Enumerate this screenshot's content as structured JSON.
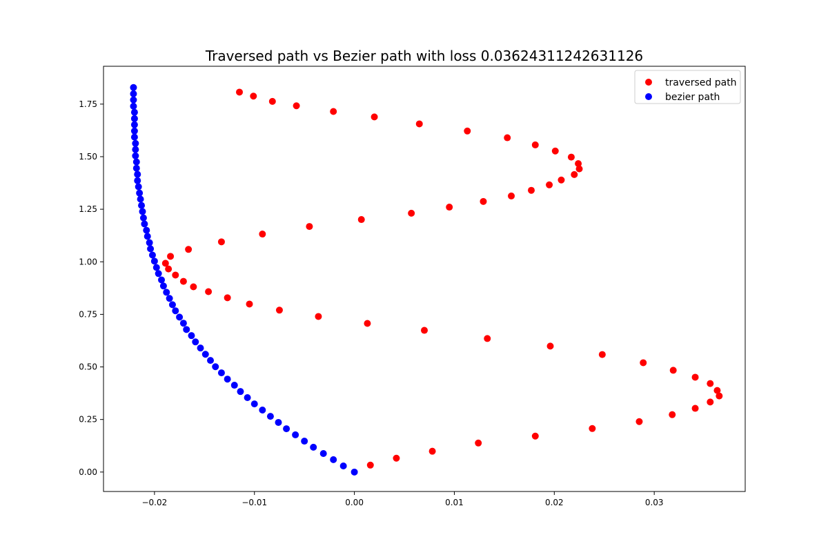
{
  "chart_data": {
    "type": "scatter",
    "title": "Traversed path vs Bezier path with loss 0.03624311242631126",
    "xlabel": "",
    "ylabel": "",
    "xlim": [
      -0.0251,
      0.0391
    ],
    "ylim": [
      -0.0925,
      1.93
    ],
    "grid": false,
    "legend_position": "top-right",
    "x_ticks": [
      {
        "value": -0.02,
        "label": "−0.02"
      },
      {
        "value": -0.01,
        "label": "−0.01"
      },
      {
        "value": 0.0,
        "label": "0.00"
      },
      {
        "value": 0.01,
        "label": "0.01"
      },
      {
        "value": 0.02,
        "label": "0.02"
      },
      {
        "value": 0.03,
        "label": "0.03"
      }
    ],
    "y_ticks": [
      {
        "value": 0.0,
        "label": "0.00"
      },
      {
        "value": 0.25,
        "label": "0.25"
      },
      {
        "value": 0.5,
        "label": "0.50"
      },
      {
        "value": 0.75,
        "label": "0.75"
      },
      {
        "value": 1.0,
        "label": "1.00"
      },
      {
        "value": 1.25,
        "label": "1.25"
      },
      {
        "value": 1.5,
        "label": "1.50"
      },
      {
        "value": 1.75,
        "label": "1.75"
      }
    ],
    "series": [
      {
        "name": "traversed path",
        "color": "#ff0000",
        "points": [
          [
            0.0016,
            0.033
          ],
          [
            0.0042,
            0.066
          ],
          [
            0.0078,
            0.099
          ],
          [
            0.0124,
            0.138
          ],
          [
            0.0181,
            0.171
          ],
          [
            0.0238,
            0.207
          ],
          [
            0.0285,
            0.24
          ],
          [
            0.0318,
            0.273
          ],
          [
            0.0341,
            0.303
          ],
          [
            0.0356,
            0.333
          ],
          [
            0.0365,
            0.362
          ],
          [
            0.0363,
            0.388
          ],
          [
            0.0356,
            0.421
          ],
          [
            0.0341,
            0.451
          ],
          [
            0.0319,
            0.484
          ],
          [
            0.0289,
            0.52
          ],
          [
            0.0248,
            0.559
          ],
          [
            0.0196,
            0.599
          ],
          [
            0.0133,
            0.635
          ],
          [
            0.007,
            0.674
          ],
          [
            0.0013,
            0.707
          ],
          [
            -0.0036,
            0.74
          ],
          [
            -0.0075,
            0.77
          ],
          [
            -0.0105,
            0.799
          ],
          [
            -0.0127,
            0.829
          ],
          [
            -0.0146,
            0.858
          ],
          [
            -0.0161,
            0.881
          ],
          [
            -0.0171,
            0.907
          ],
          [
            -0.0179,
            0.937
          ],
          [
            -0.0186,
            0.966
          ],
          [
            -0.0189,
            0.993
          ],
          [
            -0.0184,
            1.026
          ],
          [
            -0.0166,
            1.059
          ],
          [
            -0.0133,
            1.095
          ],
          [
            -0.0092,
            1.132
          ],
          [
            -0.0045,
            1.168
          ],
          [
            0.0007,
            1.201
          ],
          [
            0.0057,
            1.231
          ],
          [
            0.0095,
            1.26
          ],
          [
            0.0129,
            1.287
          ],
          [
            0.0157,
            1.313
          ],
          [
            0.0177,
            1.34
          ],
          [
            0.0195,
            1.366
          ],
          [
            0.0207,
            1.389
          ],
          [
            0.022,
            1.415
          ],
          [
            0.0225,
            1.442
          ],
          [
            0.0224,
            1.467
          ],
          [
            0.0217,
            1.498
          ],
          [
            0.0201,
            1.527
          ],
          [
            0.0181,
            1.556
          ],
          [
            0.0153,
            1.59
          ],
          [
            0.0113,
            1.622
          ],
          [
            0.0065,
            1.656
          ],
          [
            0.002,
            1.689
          ],
          [
            -0.0021,
            1.715
          ],
          [
            -0.0058,
            1.742
          ],
          [
            -0.0082,
            1.763
          ],
          [
            -0.0101,
            1.788
          ],
          [
            -0.0115,
            1.807
          ]
        ]
      },
      {
        "name": "bezier path",
        "color": "#0000ff",
        "points": [
          [
            0.0,
            0.0
          ],
          [
            -0.0011,
            0.029
          ],
          [
            -0.0021,
            0.059
          ],
          [
            -0.0031,
            0.088
          ],
          [
            -0.0041,
            0.118
          ],
          [
            -0.005,
            0.147
          ],
          [
            -0.0059,
            0.177
          ],
          [
            -0.0068,
            0.206
          ],
          [
            -0.0076,
            0.236
          ],
          [
            -0.0084,
            0.265
          ],
          [
            -0.0092,
            0.295
          ],
          [
            -0.01,
            0.324
          ],
          [
            -0.0107,
            0.354
          ],
          [
            -0.0114,
            0.383
          ],
          [
            -0.012,
            0.413
          ],
          [
            -0.0127,
            0.442
          ],
          [
            -0.0133,
            0.472
          ],
          [
            -0.0139,
            0.501
          ],
          [
            -0.0144,
            0.531
          ],
          [
            -0.0149,
            0.56
          ],
          [
            -0.0154,
            0.59
          ],
          [
            -0.0159,
            0.619
          ],
          [
            -0.0163,
            0.649
          ],
          [
            -0.0168,
            0.678
          ],
          [
            -0.0171,
            0.708
          ],
          [
            -0.0175,
            0.737
          ],
          [
            -0.0179,
            0.767
          ],
          [
            -0.0182,
            0.796
          ],
          [
            -0.0185,
            0.826
          ],
          [
            -0.0188,
            0.855
          ],
          [
            -0.0191,
            0.885
          ],
          [
            -0.0193,
            0.914
          ],
          [
            -0.0196,
            0.944
          ],
          [
            -0.0198,
            0.973
          ],
          [
            -0.02,
            1.003
          ],
          [
            -0.0202,
            1.032
          ],
          [
            -0.0204,
            1.062
          ],
          [
            -0.0205,
            1.091
          ],
          [
            -0.0207,
            1.121
          ],
          [
            -0.0208,
            1.15
          ],
          [
            -0.021,
            1.18
          ],
          [
            -0.0211,
            1.209
          ],
          [
            -0.0212,
            1.239
          ],
          [
            -0.0213,
            1.268
          ],
          [
            -0.0214,
            1.298
          ],
          [
            -0.0215,
            1.327
          ],
          [
            -0.0216,
            1.357
          ],
          [
            -0.0217,
            1.386
          ],
          [
            -0.0217,
            1.416
          ],
          [
            -0.0218,
            1.445
          ],
          [
            -0.0218,
            1.475
          ],
          [
            -0.0219,
            1.504
          ],
          [
            -0.0219,
            1.534
          ],
          [
            -0.0219,
            1.563
          ],
          [
            -0.022,
            1.593
          ],
          [
            -0.022,
            1.622
          ],
          [
            -0.022,
            1.652
          ],
          [
            -0.022,
            1.681
          ],
          [
            -0.022,
            1.711
          ],
          [
            -0.0221,
            1.74
          ],
          [
            -0.0221,
            1.77
          ],
          [
            -0.0221,
            1.799
          ],
          [
            -0.0221,
            1.829
          ]
        ]
      }
    ]
  }
}
